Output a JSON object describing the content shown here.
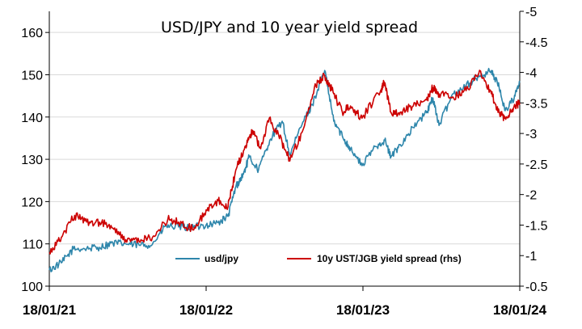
{
  "chart_data": {
    "type": "line",
    "title": "USD/JPY and 10 year yield spread",
    "x_tick_labels": [
      "18/01/21",
      "18/01/22",
      "18/01/23",
      "18/01/24"
    ],
    "x_range": [
      "2021-01-18",
      "2024-01-18"
    ],
    "y_left": {
      "range": [
        100,
        165
      ],
      "ticks": [
        100,
        110,
        120,
        130,
        140,
        150,
        160
      ],
      "tick_labels": [
        "100",
        "110",
        "120",
        "130",
        "140",
        "150",
        "160"
      ]
    },
    "y_right": {
      "range": [
        -0.5,
        -5
      ],
      "inverted": true,
      "ticks": [
        -0.5,
        -1,
        -1.5,
        -2,
        -2.5,
        -3,
        -3.5,
        -4,
        -4.5,
        -5
      ],
      "tick_labels": [
        "-0.5",
        "-1",
        "-1.5",
        "-2",
        "-2.5",
        "-3",
        "-3.5",
        "-4",
        "-4.5",
        "-5"
      ]
    },
    "grid": true,
    "legend_position": "bottom-center",
    "series": [
      {
        "name": "usd/jpy",
        "axis": "left",
        "color": "#2e86ab",
        "x": [
          "2021-01-18",
          "2021-02-15",
          "2021-03-15",
          "2021-04-15",
          "2021-05-15",
          "2021-06-15",
          "2021-07-15",
          "2021-08-15",
          "2021-09-15",
          "2021-10-15",
          "2021-11-15",
          "2021-12-15",
          "2022-01-18",
          "2022-02-15",
          "2022-03-10",
          "2022-03-28",
          "2022-04-15",
          "2022-04-28",
          "2022-05-20",
          "2022-06-15",
          "2022-07-14",
          "2022-08-01",
          "2022-08-31",
          "2022-09-22",
          "2022-10-21",
          "2022-11-11",
          "2022-12-01",
          "2022-12-20",
          "2023-01-16",
          "2023-02-15",
          "2023-03-10",
          "2023-03-24",
          "2023-04-15",
          "2023-05-15",
          "2023-06-15",
          "2023-06-30",
          "2023-07-14",
          "2023-08-15",
          "2023-09-15",
          "2023-10-15",
          "2023-11-13",
          "2023-12-01",
          "2023-12-15",
          "2024-01-05",
          "2024-01-18"
        ],
        "values": [
          103.8,
          105.5,
          108.8,
          108.9,
          109.2,
          110.2,
          110.0,
          109.7,
          109.9,
          114.2,
          114.0,
          113.8,
          114.5,
          115.0,
          116.5,
          123.5,
          126.5,
          130.5,
          127.5,
          134.5,
          139.0,
          131.0,
          138.8,
          143.0,
          151.0,
          139.0,
          135.5,
          132.5,
          128.5,
          133.0,
          134.5,
          130.5,
          133.5,
          137.5,
          141.0,
          144.5,
          138.0,
          145.5,
          147.5,
          149.5,
          151.0,
          147.0,
          141.5,
          144.5,
          148.2
        ]
      },
      {
        "name": "10y UST/JGB yield spread (rhs)",
        "axis": "right",
        "color": "#cc0000",
        "x": [
          "2021-01-18",
          "2021-02-15",
          "2021-03-18",
          "2021-04-15",
          "2021-05-15",
          "2021-06-15",
          "2021-07-15",
          "2021-08-15",
          "2021-09-15",
          "2021-10-21",
          "2021-11-15",
          "2021-12-20",
          "2022-01-18",
          "2022-02-15",
          "2022-03-10",
          "2022-03-28",
          "2022-04-20",
          "2022-05-06",
          "2022-05-25",
          "2022-06-14",
          "2022-07-14",
          "2022-08-01",
          "2022-08-31",
          "2022-09-27",
          "2022-10-21",
          "2022-11-11",
          "2022-12-01",
          "2022-12-20",
          "2023-01-16",
          "2023-02-28",
          "2023-03-08",
          "2023-03-24",
          "2023-04-15",
          "2023-05-15",
          "2023-06-15",
          "2023-06-30",
          "2023-07-14",
          "2023-08-15",
          "2023-09-15",
          "2023-10-19",
          "2023-11-13",
          "2023-12-01",
          "2023-12-15",
          "2024-01-05",
          "2024-01-18"
        ],
        "values": [
          -1.05,
          -1.3,
          -1.66,
          -1.55,
          -1.55,
          -1.45,
          -1.26,
          -1.23,
          -1.3,
          -1.6,
          -1.55,
          -1.42,
          -1.75,
          -1.9,
          -1.8,
          -2.4,
          -2.8,
          -3.05,
          -2.75,
          -3.25,
          -2.85,
          -2.55,
          -3.05,
          -3.75,
          -3.95,
          -3.65,
          -3.35,
          -3.45,
          -3.25,
          -3.7,
          -3.85,
          -3.35,
          -3.35,
          -3.45,
          -3.55,
          -3.75,
          -3.65,
          -3.6,
          -3.7,
          -4.02,
          -3.65,
          -3.35,
          -3.25,
          -3.45,
          -3.5
        ]
      }
    ]
  }
}
